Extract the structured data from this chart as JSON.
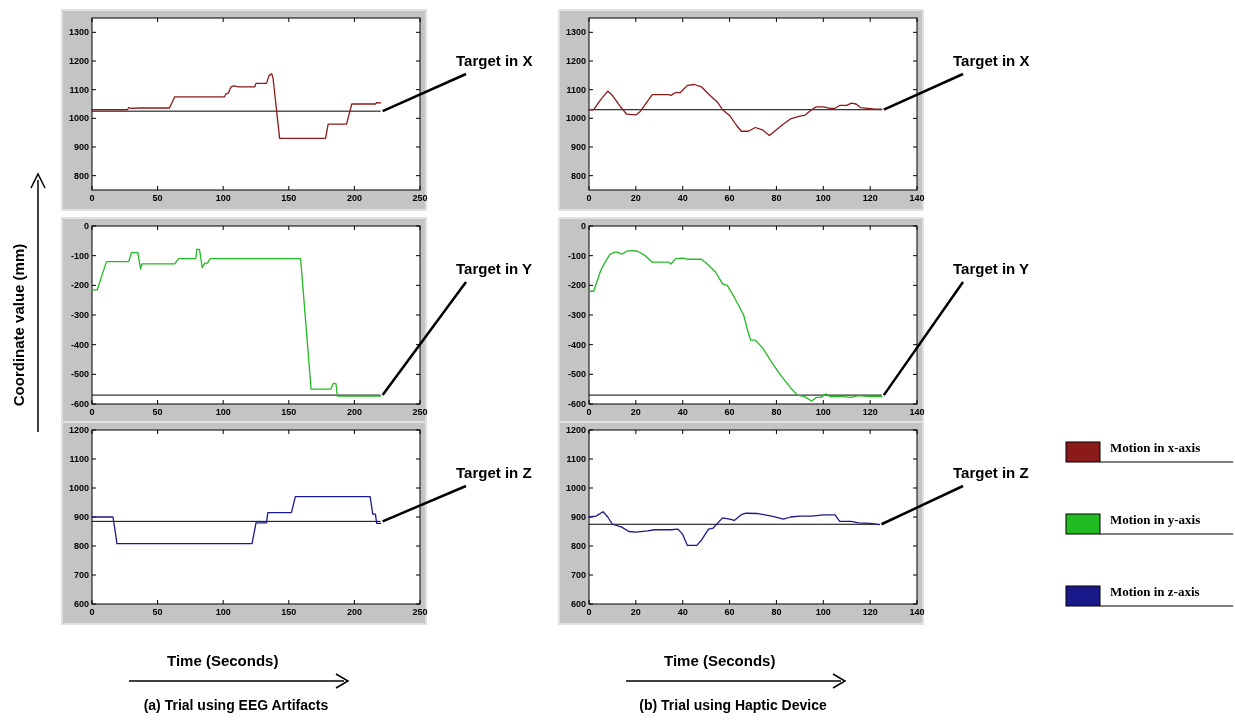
{
  "chart_data": [
    {
      "type": "line",
      "xlim": [
        0,
        250
      ],
      "xticks": [
        0,
        50,
        100,
        150,
        200,
        250
      ],
      "ylim": [
        750,
        1350
      ],
      "yticks": [
        800,
        900,
        1000,
        1100,
        1200,
        1300
      ],
      "series": [
        {
          "color": "#8b1a1a",
          "x": [
            0,
            27,
            28,
            30,
            37,
            59,
            62,
            63,
            101,
            102,
            104,
            106,
            108,
            112,
            124,
            125,
            133,
            135,
            137,
            138,
            143,
            178,
            180,
            194,
            198,
            216,
            217,
            220
          ],
          "values": [
            1030,
            1030,
            1037,
            1035,
            1036,
            1036,
            1065,
            1075,
            1075,
            1085,
            1088,
            1110,
            1113,
            1110,
            1110,
            1122,
            1122,
            1150,
            1155,
            1140,
            930,
            930,
            980,
            980,
            1050,
            1050,
            1055,
            1054
          ]
        }
      ],
      "ref_lines": [
        {
          "axis": "y",
          "value": 1025,
          "label": "Target in X",
          "color": "#000000"
        }
      ]
    },
    {
      "type": "line",
      "xlim": [
        0,
        250
      ],
      "xticks": [
        0,
        50,
        100,
        150,
        200,
        250
      ],
      "ylim": [
        -600,
        0
      ],
      "yticks": [
        -600,
        -500,
        -400,
        -300,
        -200,
        -100,
        0
      ],
      "ylabel": "Coordinate value (mm)",
      "series": [
        {
          "color": "#22bb22",
          "x": [
            0,
            4,
            11,
            28,
            30,
            35,
            37,
            38,
            63,
            66,
            79,
            80,
            82,
            84,
            86,
            88,
            90,
            159,
            167,
            182,
            184,
            186,
            187,
            220
          ],
          "values": [
            -215,
            -215,
            -120,
            -120,
            -90,
            -90,
            -145,
            -128,
            -128,
            -110,
            -110,
            -78,
            -80,
            -140,
            -125,
            -125,
            -110,
            -110,
            -550,
            -550,
            -530,
            -532,
            -573,
            -573
          ]
        }
      ],
      "ref_lines": [
        {
          "axis": "y",
          "value": -570,
          "label": "Target in Y",
          "color": "#000000"
        }
      ]
    },
    {
      "type": "line",
      "xlim": [
        0,
        250
      ],
      "xticks": [
        0,
        50,
        100,
        150,
        200,
        250
      ],
      "ylim": [
        600,
        1200
      ],
      "yticks": [
        600,
        700,
        800,
        900,
        1000,
        1100,
        1200
      ],
      "xlabel": "Time (Seconds)",
      "annotations": [
        "(a) Trial using EEG Artifacts"
      ],
      "series": [
        {
          "color": "#1a1a8b",
          "x": [
            0,
            16,
            18,
            19,
            122,
            125,
            133,
            134,
            152,
            155,
            212,
            214,
            216,
            217,
            220
          ],
          "values": [
            900,
            900,
            840,
            808,
            808,
            880,
            880,
            915,
            915,
            970,
            970,
            910,
            910,
            878,
            878
          ]
        }
      ],
      "ref_lines": [
        {
          "axis": "y",
          "value": 885,
          "label": "Target in Z",
          "color": "#000000"
        }
      ]
    },
    {
      "type": "line",
      "xlim": [
        0,
        140
      ],
      "xticks": [
        0,
        20,
        40,
        60,
        80,
        100,
        120,
        140
      ],
      "ylim": [
        750,
        1350
      ],
      "yticks": [
        800,
        900,
        1000,
        1100,
        1200,
        1300
      ],
      "legend": "right",
      "series": [
        {
          "name": "Motion in x-axis",
          "color": "#8b1a1a",
          "x": [
            0,
            2,
            5,
            8,
            10,
            13,
            16,
            20,
            22,
            25,
            27,
            34,
            35,
            37,
            39,
            42,
            45,
            48,
            51,
            55,
            57,
            60,
            63,
            65,
            68,
            71,
            74,
            77,
            80,
            83,
            86,
            90,
            92,
            95,
            97,
            100,
            103,
            105,
            107,
            110,
            112,
            114,
            116,
            119,
            122,
            125
          ],
          "values": [
            1030,
            1030,
            1065,
            1095,
            1080,
            1045,
            1015,
            1012,
            1025,
            1060,
            1083,
            1083,
            1080,
            1090,
            1090,
            1115,
            1118,
            1110,
            1085,
            1055,
            1030,
            1010,
            975,
            955,
            955,
            968,
            960,
            940,
            960,
            980,
            998,
            1008,
            1010,
            1030,
            1040,
            1040,
            1035,
            1035,
            1045,
            1045,
            1053,
            1050,
            1037,
            1035,
            1032,
            1032
          ]
        }
      ],
      "ref_lines": [
        {
          "axis": "y",
          "value": 1030,
          "label": "Target in X",
          "color": "#000000"
        }
      ]
    },
    {
      "type": "line",
      "xlim": [
        0,
        140
      ],
      "xticks": [
        0,
        20,
        40,
        60,
        80,
        100,
        120,
        140
      ],
      "ylim": [
        -600,
        0
      ],
      "yticks": [
        -600,
        -500,
        -400,
        -300,
        -200,
        -100,
        0
      ],
      "legend": "right",
      "series": [
        {
          "name": "Motion in y-axis",
          "color": "#22bb22",
          "x": [
            0,
            2,
            5,
            7,
            9,
            11,
            12,
            14,
            16,
            19,
            21,
            24,
            27,
            34,
            35,
            37,
            40,
            42,
            48,
            50,
            54,
            57,
            59,
            62,
            66,
            68,
            69,
            71,
            74,
            78,
            82,
            86,
            89,
            92,
            95,
            97,
            99,
            101,
            103,
            108,
            112,
            115,
            120,
            125
          ],
          "values": [
            -220,
            -220,
            -150,
            -120,
            -95,
            -88,
            -88,
            -95,
            -85,
            -83,
            -86,
            -100,
            -122,
            -122,
            -128,
            -110,
            -108,
            -112,
            -112,
            -125,
            -155,
            -195,
            -200,
            -240,
            -300,
            -360,
            -385,
            -385,
            -410,
            -460,
            -505,
            -545,
            -570,
            -575,
            -590,
            -578,
            -578,
            -566,
            -575,
            -575,
            -578,
            -572,
            -575,
            -575
          ]
        }
      ],
      "ref_lines": [
        {
          "axis": "y",
          "value": -570,
          "label": "Target in Y",
          "color": "#000000"
        }
      ]
    },
    {
      "type": "line",
      "xlim": [
        0,
        140
      ],
      "xticks": [
        0,
        20,
        40,
        60,
        80,
        100,
        120,
        140
      ],
      "ylim": [
        600,
        1200
      ],
      "yticks": [
        600,
        700,
        800,
        900,
        1000,
        1100,
        1200
      ],
      "xlabel": "Time (Seconds)",
      "annotations": [
        "(b) Trial using Haptic Device"
      ],
      "legend": "right",
      "series": [
        {
          "name": "Motion in z-axis",
          "color": "#1a1a8b",
          "x": [
            0,
            3,
            6,
            8,
            10,
            14,
            17,
            20,
            25,
            28,
            35,
            38,
            40,
            42,
            46,
            48,
            51,
            53,
            57,
            60,
            62,
            65,
            67,
            72,
            78,
            83,
            86,
            90,
            95,
            100,
            105,
            107,
            112,
            115,
            120,
            124
          ],
          "values": [
            900,
            903,
            918,
            900,
            875,
            865,
            850,
            848,
            852,
            856,
            856,
            858,
            840,
            802,
            802,
            820,
            858,
            862,
            897,
            893,
            888,
            908,
            913,
            912,
            903,
            893,
            900,
            903,
            903,
            907,
            907,
            885,
            885,
            880,
            878,
            874
          ]
        }
      ],
      "ref_lines": [
        {
          "axis": "y",
          "value": 875,
          "label": "Target in Z",
          "color": "#000000"
        }
      ]
    }
  ]
}
